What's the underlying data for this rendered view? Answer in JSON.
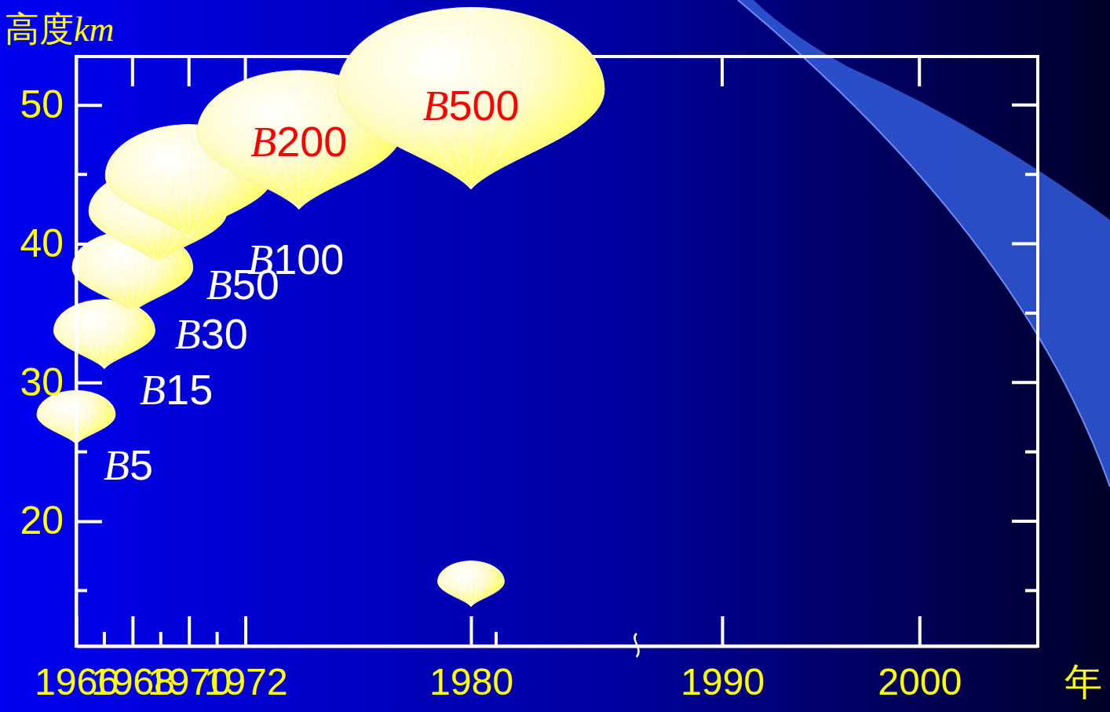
{
  "chart_data": {
    "type": "scatter",
    "marker": "balloon",
    "x_label": "年",
    "y_label": "高度km",
    "x": [
      1966,
      1967,
      1968,
      1968.9,
      1970,
      1973.9,
      1980,
      1980
    ],
    "values": [
      27.5,
      33.5,
      38,
      42,
      44.5,
      47.5,
      50.5,
      15.5
    ],
    "sizes": [
      5,
      15,
      30,
      50,
      100,
      200,
      500,
      2.3
    ],
    "labels": [
      "B5",
      "B15",
      "B30",
      "B50",
      "B100",
      "B200",
      "B500",
      null
    ],
    "label_colors": [
      "#ffffff",
      "#ffffff",
      "#ffffff",
      "#ffffff",
      "#ffffff",
      "#ff0000",
      "#ff0000",
      null
    ],
    "xlim": [
      1966,
      2006
    ],
    "ylim": [
      11,
      53.5
    ],
    "xticks": [
      1966,
      1968,
      1970,
      1972,
      1980,
      1990,
      2000
    ],
    "yticks": [
      20,
      30,
      40,
      50
    ]
  }
}
